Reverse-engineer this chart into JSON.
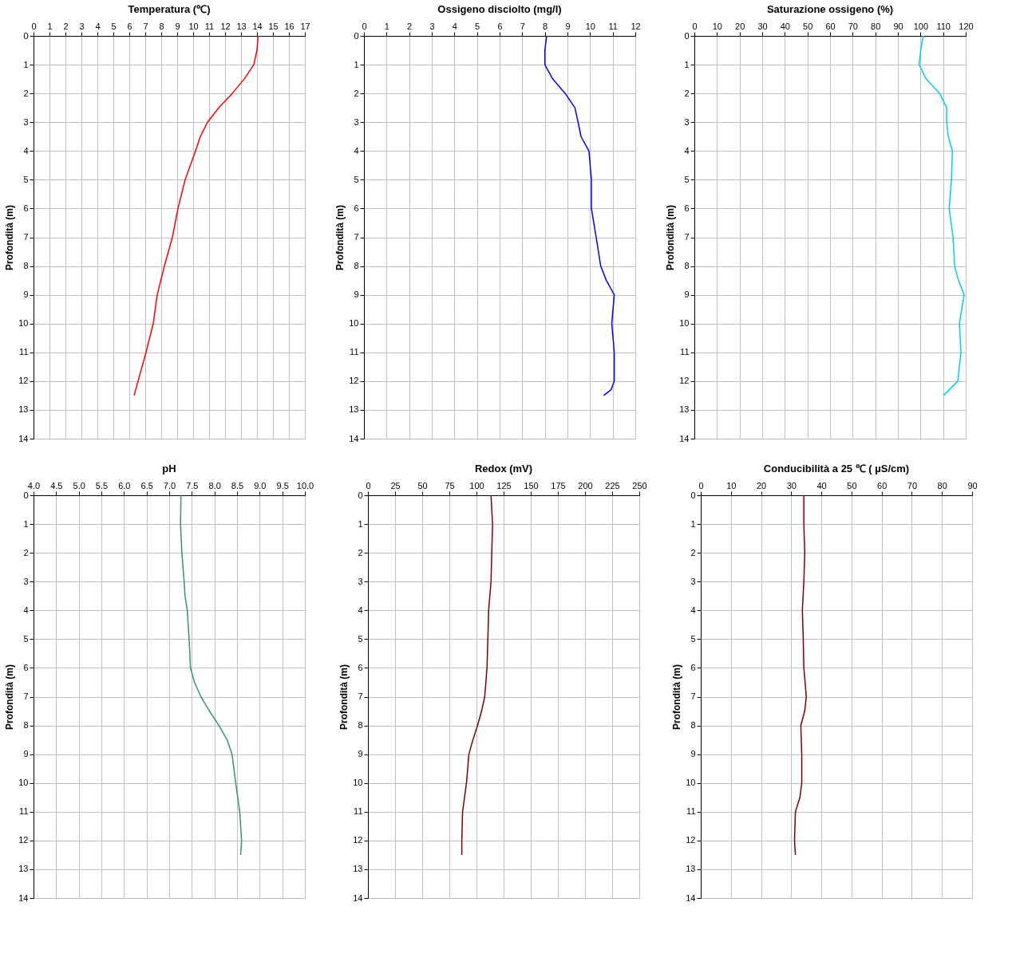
{
  "chart_data": [
    {
      "type": "line",
      "title": "Temperatura (℃)",
      "ylabel": "Profondità (m)",
      "xlim": [
        0,
        17
      ],
      "xticks": [
        0,
        1,
        2,
        3,
        4,
        5,
        6,
        7,
        8,
        9,
        10,
        11,
        12,
        13,
        14,
        15,
        16,
        17
      ],
      "ylim": [
        14,
        0
      ],
      "yticks": [
        0,
        1,
        2,
        3,
        4,
        5,
        6,
        7,
        8,
        9,
        10,
        11,
        12,
        13,
        14
      ],
      "grid": true,
      "line_style": "solid",
      "series": [
        {
          "color": "#ff0000",
          "x": [
            14.07,
            14.0,
            13.8,
            13.2,
            12.45,
            11.6,
            10.9,
            10.45,
            10.15,
            9.5,
            9.05,
            8.7,
            8.2,
            7.75,
            7.5,
            7.05,
            6.55,
            6.3
          ],
          "values": [
            0,
            0.5,
            1,
            1.5,
            2,
            2.5,
            3,
            3.5,
            4,
            5,
            6,
            7,
            8,
            9,
            10,
            11,
            12,
            12.5
          ]
        }
      ]
    },
    {
      "type": "line",
      "title": "Ossigeno disciolto (mg/l)",
      "ylabel": "Profondità (m)",
      "xlim": [
        0,
        12
      ],
      "xticks": [
        0,
        1,
        2,
        3,
        4,
        5,
        6,
        7,
        8,
        9,
        10,
        11,
        12
      ],
      "ylim": [
        14,
        0
      ],
      "yticks": [
        0,
        1,
        2,
        3,
        4,
        5,
        6,
        7,
        8,
        9,
        10,
        11,
        12,
        13,
        14
      ],
      "grid": true,
      "line_style": "solid",
      "series": [
        {
          "color": "#0000ff",
          "x": [
            8.08,
            8.0,
            8.0,
            8.35,
            8.9,
            9.33,
            9.47,
            9.6,
            9.95,
            10.06,
            10.06,
            10.27,
            10.47,
            10.72,
            11.07,
            10.96,
            11.07,
            11.07,
            10.93,
            10.6
          ],
          "values": [
            0,
            0.5,
            1,
            1.5,
            2,
            2.5,
            3,
            3.5,
            4,
            5,
            6,
            7,
            8,
            8.5,
            9,
            10,
            11,
            12,
            12.3,
            12.5
          ]
        }
      ]
    },
    {
      "type": "line",
      "title": "Saturazione ossigeno (%)",
      "ylabel": "Profondità (m)",
      "xlim": [
        0,
        120
      ],
      "xticks": [
        0,
        10,
        20,
        30,
        40,
        50,
        60,
        70,
        80,
        90,
        100,
        110,
        120
      ],
      "ylim": [
        14,
        0
      ],
      "yticks": [
        0,
        1,
        2,
        3,
        4,
        5,
        6,
        7,
        8,
        9,
        10,
        11,
        12,
        13,
        14
      ],
      "grid": true,
      "line_style": "solid",
      "series": [
        {
          "color": "#00ccff",
          "x": [
            101.2,
            100.1,
            99.4,
            102.5,
            108.5,
            111.6,
            111.6,
            112.3,
            114.1,
            113.7,
            112.7,
            114.4,
            115.1,
            116.8,
            119.3,
            117.2,
            117.9,
            116.5,
            110.2
          ],
          "values": [
            0,
            0.5,
            1,
            1.5,
            2,
            2.5,
            3,
            3.5,
            4,
            5,
            6,
            7,
            8,
            8.5,
            9,
            10,
            11,
            12,
            12.5
          ]
        }
      ]
    },
    {
      "type": "line",
      "title": "pH",
      "ylabel": "Profondità (m)",
      "xlim": [
        4,
        10
      ],
      "xticks": [
        {
          "value": 4,
          "label": "4.0"
        },
        4.5,
        {
          "value": 5,
          "label": "5.0"
        },
        5.5,
        {
          "value": 6,
          "label": "6.0"
        },
        6.5,
        {
          "value": 7,
          "label": "7.0"
        },
        7.5,
        {
          "value": 8,
          "label": "8.0"
        },
        8.5,
        {
          "value": 9,
          "label": "9.0"
        },
        9.5,
        {
          "value": 10,
          "label": "10.0"
        }
      ],
      "ylim": [
        14,
        0
      ],
      "yticks": [
        0,
        1,
        2,
        3,
        4,
        5,
        6,
        7,
        8,
        9,
        10,
        11,
        12,
        13,
        14
      ],
      "grid": true,
      "line_style": "solid",
      "series": [
        {
          "color": "#339966",
          "x": [
            7.26,
            7.25,
            7.28,
            7.33,
            7.35,
            7.4,
            7.44,
            7.47,
            7.56,
            7.7,
            7.89,
            8.1,
            8.28,
            8.39,
            8.47,
            8.56,
            8.6,
            8.58
          ],
          "values": [
            0,
            1,
            2,
            3,
            3.5,
            4,
            5,
            6,
            6.5,
            7,
            7.5,
            8,
            8.5,
            9,
            10,
            11,
            12,
            12.5
          ]
        }
      ]
    },
    {
      "type": "line",
      "title": "Redox (mV)",
      "ylabel": "Profondità (m)",
      "xlim": [
        0,
        250
      ],
      "xticks": [
        0,
        25,
        50,
        75,
        100,
        125,
        150,
        175,
        200,
        225,
        250
      ],
      "ylim": [
        14,
        0
      ],
      "yticks": [
        0,
        1,
        2,
        3,
        4,
        5,
        6,
        7,
        8,
        9,
        10,
        11,
        12,
        13,
        14
      ],
      "grid": true,
      "line_style": "solid",
      "series": [
        {
          "color": "#800000",
          "x": [
            113.4,
            114.8,
            114.1,
            113.4,
            111.2,
            110.5,
            109.7,
            107.6,
            104.7,
            101,
            96.7,
            93,
            90.8,
            87.2,
            86.5,
            86.5
          ],
          "values": [
            0,
            1,
            2,
            3,
            4,
            5,
            6,
            7,
            7.5,
            8,
            8.5,
            9,
            10,
            11,
            12,
            12.5
          ]
        }
      ]
    },
    {
      "type": "line",
      "title": "Conducibilità a 25 ℃ ( µS/cm)",
      "ylabel": "Profondità (m)",
      "xlim": [
        0,
        90
      ],
      "xticks": [
        0,
        10,
        20,
        30,
        40,
        50,
        60,
        70,
        80,
        90
      ],
      "ylim": [
        14,
        0
      ],
      "yticks": [
        0,
        1,
        2,
        3,
        4,
        5,
        6,
        7,
        8,
        9,
        10,
        11,
        12,
        13,
        14
      ],
      "grid": true,
      "line_style": "solid",
      "series": [
        {
          "color": "#800000",
          "x": [
            34.2,
            34.2,
            34.5,
            34.2,
            33.7,
            34.0,
            34.2,
            35.0,
            34.5,
            33.2,
            33.5,
            33.5,
            32.9,
            31.4,
            31.1,
            31.4
          ],
          "values": [
            0,
            1,
            2,
            3,
            4,
            5,
            6,
            7,
            7.5,
            8,
            9,
            10,
            10.5,
            11,
            12,
            12.5
          ]
        }
      ]
    }
  ]
}
